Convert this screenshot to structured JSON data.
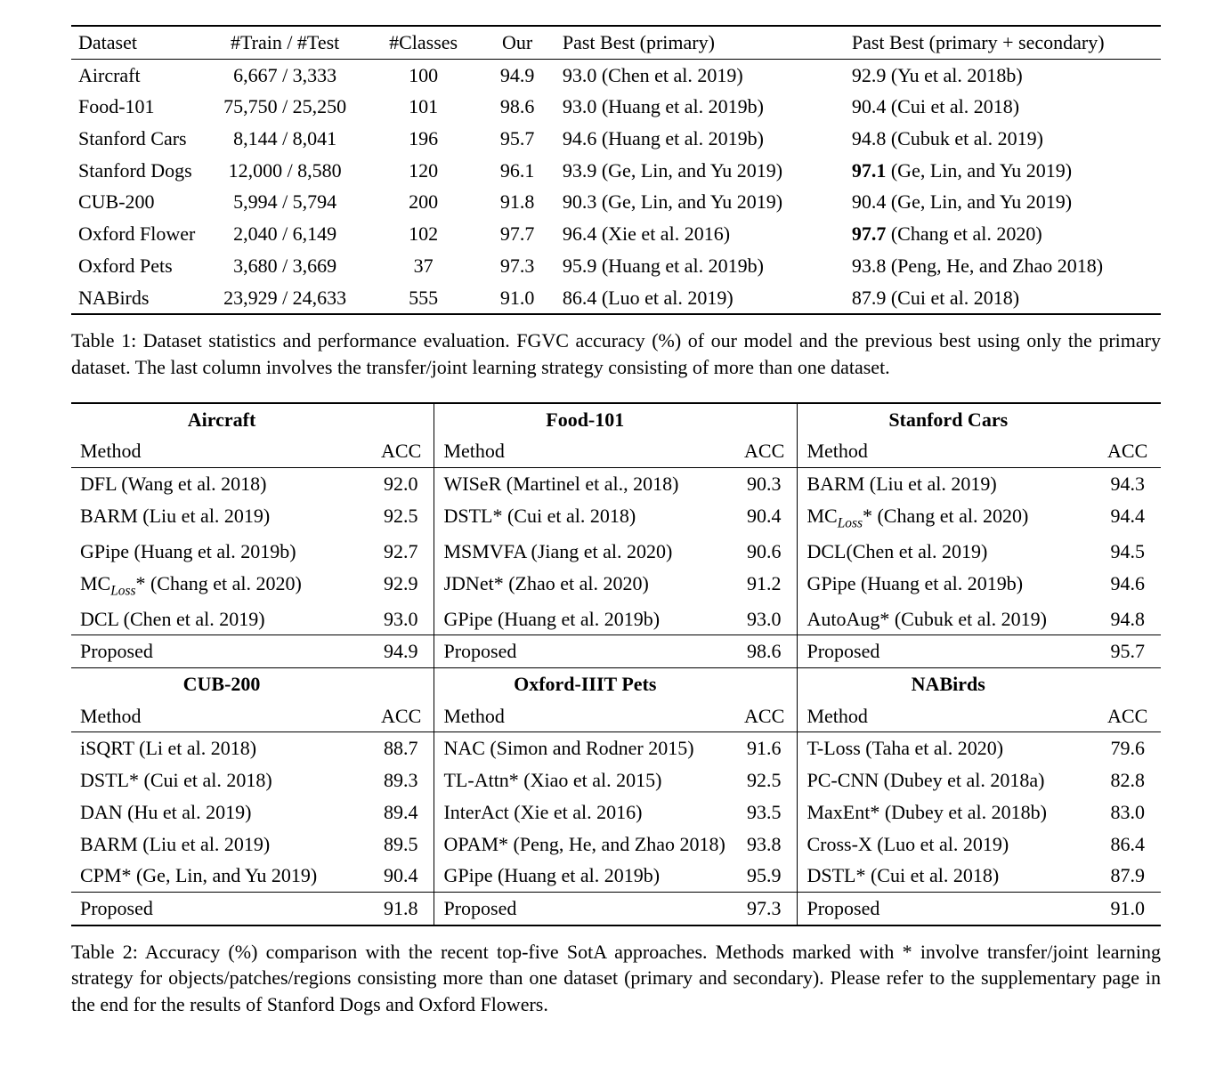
{
  "table1": {
    "headers": {
      "dataset": "Dataset",
      "train_test": "#Train / #Test",
      "classes": "#Classes",
      "our": "Our",
      "past_primary": "Past Best (primary)",
      "past_both": "Past Best (primary + secondary)"
    },
    "rows": [
      {
        "dataset": "Aircraft",
        "tt": "6,667 / 3,333",
        "cls": "100",
        "our": "94.9",
        "our_bold": true,
        "p1": "93.0 (Chen et al. 2019)",
        "p2": "92.9 (Yu et al. 2018b)",
        "p2_bold": false
      },
      {
        "dataset": "Food-101",
        "tt": "75,750 / 25,250",
        "cls": "101",
        "our": "98.6",
        "our_bold": true,
        "p1": "93.0 (Huang et al. 2019b)",
        "p2": "90.4 (Cui et al. 2018)",
        "p2_bold": false
      },
      {
        "dataset": "Stanford Cars",
        "tt": "8,144 / 8,041",
        "cls": "196",
        "our": "95.7",
        "our_bold": true,
        "p1": "94.6 (Huang et al. 2019b)",
        "p2": "94.8 (Cubuk et al. 2019)",
        "p2_bold": false
      },
      {
        "dataset": "Stanford Dogs",
        "tt": "12,000 / 8,580",
        "cls": "120",
        "our": "96.1",
        "our_bold": false,
        "p1": "93.9 (Ge, Lin, and Yu 2019)",
        "p2": "97.1 (Ge, Lin, and Yu 2019)",
        "p2_bold": true
      },
      {
        "dataset": "CUB-200",
        "tt": "5,994 / 5,794",
        "cls": "200",
        "our": "91.8",
        "our_bold": true,
        "p1": "90.3 (Ge, Lin, and Yu 2019)",
        "p2": "90.4 (Ge, Lin, and Yu 2019)",
        "p2_bold": false
      },
      {
        "dataset": "Oxford Flower",
        "tt": "2,040 / 6,149",
        "cls": "102",
        "our": "97.7",
        "our_bold": true,
        "p1": "96.4 (Xie et al. 2016)",
        "p2": "97.7 (Chang et al. 2020)",
        "p2_bold": true
      },
      {
        "dataset": "Oxford Pets",
        "tt": "3,680 / 3,669",
        "cls": "37",
        "our": "97.3",
        "our_bold": true,
        "p1": "95.9 (Huang et al. 2019b)",
        "p2": "93.8 (Peng, He, and Zhao 2018)",
        "p2_bold": false
      },
      {
        "dataset": "NABirds",
        "tt": "23,929 / 24,633",
        "cls": "555",
        "our": "91.0",
        "our_bold": true,
        "p1": "86.4 (Luo et al. 2019)",
        "p2": "87.9 (Cui et al. 2018)",
        "p2_bold": false
      }
    ],
    "caption": "Table 1: Dataset statistics and performance evaluation. FGVC accuracy (%) of our model and the previous best using only the primary dataset. The last column involves the transfer/joint learning strategy consisting of more than one dataset."
  },
  "table2": {
    "col_labels": {
      "method": "Method",
      "acc": "ACC"
    },
    "blocks": {
      "top": [
        {
          "title": "Aircraft",
          "rows": [
            {
              "m": "DFL (Wang et al. 2018)",
              "a": "92.0"
            },
            {
              "m": "BARM (Liu et al. 2019)",
              "a": "92.5"
            },
            {
              "m": "GPipe (Huang et al. 2019b)",
              "a": "92.7"
            },
            {
              "m_html": "MC<span class='sub'>Loss</span>* (Chang et al. 2020)",
              "a": "92.9"
            },
            {
              "m": "DCL (Chen et al. 2019)",
              "a": "93.0"
            }
          ],
          "proposed": {
            "m": "Proposed",
            "a": "94.9"
          }
        },
        {
          "title": "Food-101",
          "rows": [
            {
              "m": "WISeR (Martinel et al., 2018)",
              "a": "90.3"
            },
            {
              "m": "DSTL* (Cui et al. 2018)",
              "a": "90.4"
            },
            {
              "m": "MSMVFA (Jiang et al. 2020)",
              "a": "90.6"
            },
            {
              "m": "JDNet* (Zhao et al. 2020)",
              "a": "91.2"
            },
            {
              "m": "GPipe (Huang et al. 2019b)",
              "a": "93.0"
            }
          ],
          "proposed": {
            "m": "Proposed",
            "a": "98.6"
          }
        },
        {
          "title": "Stanford Cars",
          "rows": [
            {
              "m": "BARM (Liu et al. 2019)",
              "a": "94.3"
            },
            {
              "m_html": "MC<span class='sub'>Loss</span>* (Chang et al. 2020)",
              "a": "94.4"
            },
            {
              "m": "DCL(Chen et al. 2019)",
              "a": "94.5"
            },
            {
              "m": "GPipe (Huang et al. 2019b)",
              "a": "94.6"
            },
            {
              "m": "AutoAug* (Cubuk et al. 2019)",
              "a": "94.8"
            }
          ],
          "proposed": {
            "m": "Proposed",
            "a": "95.7"
          }
        }
      ],
      "bottom": [
        {
          "title": "CUB-200",
          "rows": [
            {
              "m": "iSQRT (Li et al. 2018)",
              "a": "88.7"
            },
            {
              "m": "DSTL* (Cui et al. 2018)",
              "a": "89.3"
            },
            {
              "m": "DAN (Hu et al. 2019)",
              "a": "89.4"
            },
            {
              "m": "BARM (Liu et al. 2019)",
              "a": "89.5"
            },
            {
              "m": "CPM* (Ge, Lin, and Yu 2019)",
              "a": "90.4"
            }
          ],
          "proposed": {
            "m": "Proposed",
            "a": "91.8"
          }
        },
        {
          "title": "Oxford-IIIT Pets",
          "rows": [
            {
              "m": "NAC (Simon and Rodner 2015)",
              "a": "91.6"
            },
            {
              "m": "TL-Attn* (Xiao et al. 2015)",
              "a": "92.5"
            },
            {
              "m": "InterAct (Xie et al. 2016)",
              "a": "93.5"
            },
            {
              "m": "OPAM* (Peng, He, and Zhao 2018)",
              "a": "93.8"
            },
            {
              "m": "GPipe (Huang et al. 2019b)",
              "a": "95.9"
            }
          ],
          "proposed": {
            "m": "Proposed",
            "a": "97.3"
          }
        },
        {
          "title": "NABirds",
          "rows": [
            {
              "m": "T-Loss (Taha et al. 2020)",
              "a": "79.6"
            },
            {
              "m": "PC-CNN (Dubey et al. 2018a)",
              "a": "82.8"
            },
            {
              "m": "MaxEnt* (Dubey et al. 2018b)",
              "a": "83.0"
            },
            {
              "m": "Cross-X (Luo et al. 2019)",
              "a": "86.4"
            },
            {
              "m": "DSTL* (Cui et al. 2018)",
              "a": "87.9"
            }
          ],
          "proposed": {
            "m": "Proposed",
            "a": "91.0"
          }
        }
      ]
    },
    "caption": "Table 2: Accuracy (%) comparison with the recent top-five SotA approaches. Methods marked with * involve transfer/joint learning strategy for objects/patches/regions consisting more than one dataset (primary and secondary). Please refer to the supplementary page in the end for the results of Stanford Dogs and Oxford Flowers."
  },
  "style": {
    "font_family": "Times New Roman",
    "font_size_pt": 16,
    "text_color": "#000000",
    "background_color": "#ffffff",
    "rule_color": "#000000",
    "bold_weight": 700
  }
}
